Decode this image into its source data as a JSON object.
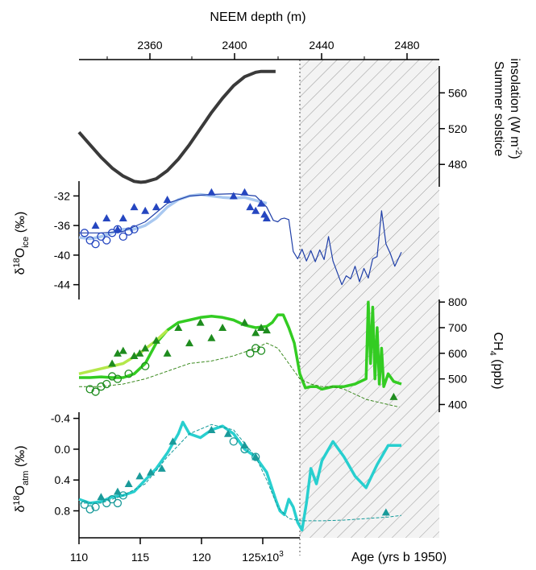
{
  "chart_data": {
    "type": "line",
    "top_axis": {
      "label": "NEEM depth (m)",
      "ticks": [
        "2360",
        "2400",
        "2440",
        "2480"
      ]
    },
    "bottom_axis": {
      "label": "Age (yrs b 1950)",
      "ticks": [
        "110",
        "115",
        "120",
        "125x10³"
      ],
      "range": [
        110,
        130
      ]
    },
    "hatched_region": {
      "depth_start": 2432,
      "depth_end": 2496
    },
    "panels": [
      {
        "id": "insolation",
        "ylabel": "Summer solstice insolation (W m⁻²)",
        "yticks": [
          "560",
          "520",
          "480"
        ],
        "ylim": [
          455,
          590
        ],
        "series": [
          {
            "color": "#3a3a3a",
            "x": [
              110,
              111,
              112,
              113,
              114,
              115,
              115.6,
              116,
              117,
              118,
              119,
              120,
              121,
              122,
              123,
              124,
              125,
              126,
              126.5,
              127,
              127.8
            ],
            "y": [
              516,
              502,
              488,
              476,
              467,
              461,
              460,
              460.5,
              464,
              473,
              486,
              502,
              520,
              538,
              554,
              568,
              578,
              583,
              584,
              584,
              584
            ]
          }
        ]
      },
      {
        "id": "d18O_ice",
        "ylabel": "δ¹⁸O ice (‰)",
        "yticks": [
          "-32",
          "-36",
          "-40",
          "-44"
        ],
        "ylim": [
          -46,
          -30
        ],
        "series": [
          {
            "color": "#a9c8f0",
            "style": "thick",
            "x": [
              110,
              111,
              112,
              113,
              114,
              115,
              116,
              117,
              118,
              119,
              120,
              121,
              122,
              123,
              124,
              125,
              126,
              127
            ],
            "y": [
              -37.6,
              -37.8,
              -37.5,
              -37,
              -36.5,
              -36.5,
              -36,
              -35,
              -33.5,
              -32.5,
              -32,
              -31.8,
              -32,
              -32.2,
              -32.3,
              -32.2,
              -32.6,
              -33
            ]
          },
          {
            "color": "#1f3fa8",
            "style": "thin",
            "x": [
              110,
              112,
              114,
              116,
              118,
              120,
              122,
              124,
              126,
              127,
              127.6,
              128,
              128.3,
              128.6,
              129,
              129.4,
              129.8,
              130.2,
              130.6,
              131,
              131.4,
              131.8,
              132.2,
              132.6,
              133,
              133.4,
              133.8,
              134.2,
              134.6,
              135,
              135.4,
              135.8,
              136.2,
              136.6,
              137,
              137.4,
              137.8,
              138.2,
              138.6,
              139.2
            ],
            "y": [
              -37,
              -37,
              -36.8,
              -35.5,
              -33,
              -32,
              -31.8,
              -31.7,
              -32,
              -33.5,
              -35.3,
              -35.5,
              -35.1,
              -35,
              -35.2,
              -39.5,
              -40.5,
              -39.2,
              -40.8,
              -39.4,
              -40.9,
              -39.3,
              -40.6,
              -37.5,
              -40.8,
              -42.4,
              -44,
              -42.8,
              -43.2,
              -41.5,
              -43.6,
              -41.8,
              -43.1,
              -40.5,
              -40.2,
              -34,
              -38.5,
              -39.8,
              -41.5,
              -39.6
            ]
          }
        ],
        "markers": [
          {
            "shape": "triangle",
            "color": "#2546c0",
            "x": [
              111.5,
              112.5,
              113.5,
              114,
              115,
              116,
              117,
              118,
              122,
              124,
              125,
              125.5,
              126,
              126.5,
              126.8,
              127
            ],
            "y": [
              -36,
              -35,
              -36.5,
              -35,
              -33.5,
              -34,
              -33.5,
              -32.5,
              -31.5,
              -32,
              -31.5,
              -33.5,
              -34,
              -33,
              -34.5,
              -35
            ]
          },
          {
            "shape": "circle",
            "color": "#2546c0",
            "x": [
              110.5,
              111,
              111.5,
              112,
              112.5,
              113,
              113.5,
              114,
              114.5,
              115
            ],
            "y": [
              -37,
              -38,
              -38.5,
              -37.5,
              -38,
              -37,
              -36.5,
              -37.5,
              -36.8,
              -36.5
            ]
          }
        ]
      },
      {
        "id": "CH4",
        "ylabel": "CH₄ (ppb)",
        "yticks": [
          "800",
          "700",
          "600",
          "500",
          "400"
        ],
        "ylim": [
          370,
          810
        ],
        "series": [
          {
            "color": "#33cc22",
            "style": "thick",
            "x": [
              110,
              111,
              112,
              113,
              114,
              115,
              116,
              117,
              118,
              119,
              120,
              121,
              122,
              123,
              124,
              125,
              126,
              127,
              127.5,
              128,
              128.5,
              129,
              129.5,
              130,
              130.5,
              131,
              131.5,
              132,
              133,
              134,
              135,
              136,
              136.2,
              136.4,
              136.6,
              136.8,
              137,
              137.2,
              137.4,
              137.6,
              138,
              138.5,
              139.2
            ],
            "y": [
              505,
              505,
              508,
              505,
              505,
              520,
              560,
              640,
              690,
              720,
              730,
              740,
              745,
              740,
              730,
              710,
              700,
              705,
              720,
              750,
              750,
              700,
              640,
              520,
              465,
              470,
              470,
              460,
              470,
              470,
              480,
              500,
              800,
              560,
              780,
              500,
              700,
              480,
              620,
              470,
              520,
              490,
              480
            ]
          },
          {
            "color": "#b4e84a",
            "style": "thick",
            "x": [
              110,
              112,
              114,
              115.5,
              117,
              118
            ],
            "y": [
              520,
              540,
              560,
              600,
              650,
              690
            ]
          },
          {
            "color": "#3b8a1f",
            "style": "dashed",
            "x": [
              110,
              112,
              114,
              116,
              118,
              120,
              122,
              124,
              126,
              127,
              128,
              129,
              130,
              131,
              132,
              133,
              134,
              135,
              136,
              137,
              138,
              139
            ],
            "y": [
              470,
              470,
              480,
              500,
              530,
              560,
              570,
              590,
              620,
              640,
              620,
              560,
              500,
              480,
              470,
              470,
              460,
              440,
              420,
              410,
              400,
              390
            ]
          }
        ],
        "markers": [
          {
            "shape": "triangle",
            "color": "#1e8c1e",
            "x": [
              113,
              113.5,
              114,
              115,
              115.5,
              116,
              117,
              118,
              119,
              120,
              121,
              122,
              123,
              125,
              126,
              126.5,
              127,
              138.5
            ],
            "y": [
              560,
              600,
              610,
              590,
              600,
              620,
              650,
              600,
              700,
              640,
              720,
              660,
              700,
              720,
              680,
              700,
              690,
              430
            ]
          },
          {
            "shape": "circle",
            "color": "#1e8c1e",
            "x": [
              111,
              111.5,
              112,
              112.5,
              113,
              113.5,
              114.5,
              116,
              125.5,
              126,
              126.5
            ],
            "y": [
              460,
              450,
              470,
              480,
              510,
              500,
              520,
              550,
              600,
              620,
              610
            ]
          }
        ]
      },
      {
        "id": "d18O_atm",
        "ylabel": "δ¹⁸O atm (‰)",
        "yticks": [
          "-0.4",
          "0.0",
          "0.4",
          "0.8"
        ],
        "ylim": [
          1.15,
          -0.48
        ],
        "series": [
          {
            "color": "#28cfcf",
            "style": "thick",
            "x": [
              110,
              111,
              112,
              113,
              114,
              115,
              116,
              117,
              118,
              119,
              119.4,
              120,
              121,
              122,
              123,
              124,
              125,
              126,
              127,
              127.8,
              128.2,
              128.6,
              129,
              129.4,
              129.8,
              130.2,
              130.6,
              131,
              131.5,
              132,
              133,
              134,
              135,
              136,
              137,
              138,
              139.2
            ],
            "y": [
              0.65,
              0.7,
              0.68,
              0.62,
              0.6,
              0.55,
              0.4,
              0.25,
              0.05,
              -0.2,
              -0.35,
              -0.2,
              -0.15,
              -0.25,
              -0.3,
              -0.2,
              0,
              0.1,
              0.3,
              0.65,
              0.8,
              0.85,
              0.65,
              0.75,
              0.95,
              1.05,
              0.7,
              0.25,
              0.45,
              0.15,
              -0.1,
              0.1,
              0.35,
              0.5,
              0.2,
              -0.05,
              -0.05
            ]
          },
          {
            "color": "#139a9a",
            "style": "dashed",
            "x": [
              110,
              112,
              114,
              116,
              118,
              120,
              122,
              124,
              126,
              127,
              128,
              129,
              130,
              132,
              134,
              136,
              138,
              139.2
            ],
            "y": [
              0.7,
              0.7,
              0.6,
              0.45,
              0.1,
              -0.2,
              -0.32,
              -0.25,
              0.1,
              0.4,
              0.75,
              0.9,
              0.93,
              0.93,
              0.92,
              0.9,
              0.88,
              0.86
            ]
          }
        ],
        "markers": [
          {
            "shape": "triangle",
            "color": "#1a9a9a",
            "x": [
              112,
              113.5,
              114.5,
              115.5,
              116.5,
              117.5,
              118.5,
              122,
              123.5,
              125,
              126,
              137.8
            ],
            "y": [
              0.62,
              0.55,
              0.45,
              0.35,
              0.3,
              0.25,
              -0.1,
              -0.25,
              -0.2,
              -0.05,
              0.1,
              0.82
            ]
          },
          {
            "shape": "circle",
            "color": "#1a9a9a",
            "x": [
              110.5,
              111,
              111.5,
              112.5,
              113,
              113.5,
              114,
              124,
              125,
              126
            ],
            "y": [
              0.72,
              0.78,
              0.75,
              0.7,
              0.65,
              0.7,
              0.6,
              -0.1,
              0.0,
              0.1
            ]
          }
        ]
      }
    ]
  }
}
